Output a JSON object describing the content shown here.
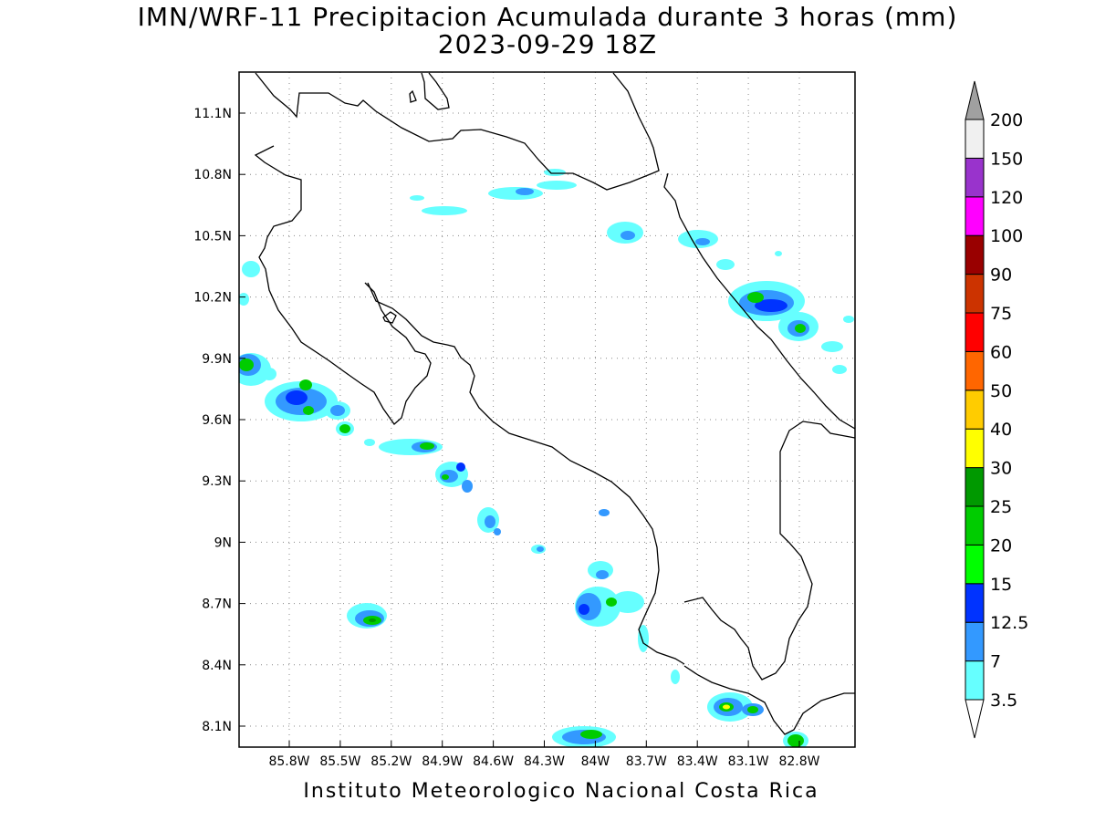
{
  "title": {
    "line1": "IMN/WRF-11 Precipitacion Acumulada durante 3 horas (mm)",
    "line2": "2023-09-29 18Z"
  },
  "footer": "Instituto Meteorologico Nacional Costa Rica",
  "map": {
    "lon_ticks": [
      "85.8W",
      "85.5W",
      "85.2W",
      "84.9W",
      "84.6W",
      "84.3W",
      "84W",
      "83.7W",
      "83.4W",
      "83.1W",
      "82.8W"
    ],
    "lat_ticks": [
      "11.1N",
      "10.8N",
      "10.5N",
      "10.2N",
      "9.9N",
      "9.6N",
      "9.3N",
      "9N",
      "8.7N",
      "8.4N",
      "8.1N"
    ],
    "gridlines": "dotted"
  },
  "colorbar": {
    "labels": [
      "3.5",
      "7",
      "12.5",
      "15",
      "20",
      "25",
      "30",
      "40",
      "50",
      "60",
      "75",
      "90",
      "100",
      "120",
      "150",
      "200"
    ],
    "colors": [
      "#66ffff",
      "#3399ff",
      "#0033ff",
      "#00ff00",
      "#00cc00",
      "#009900",
      "#ffff00",
      "#ffcc00",
      "#ff6600",
      "#ff0000",
      "#cc3300",
      "#990000",
      "#ff00ff",
      "#9933cc",
      "#f0f0f0",
      "#a0a0a0"
    ]
  }
}
